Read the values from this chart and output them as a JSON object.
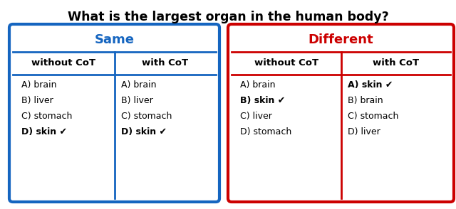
{
  "title": "What is the largest organ in the human body?",
  "title_fontsize": 12.5,
  "title_fontweight": "bold",
  "blue_color": "#1565C0",
  "red_color": "#CC0000",
  "same_label": "Same",
  "different_label": "Different",
  "col_headers": [
    "without CoT",
    "with CoT",
    "without CoT",
    "with CoT"
  ],
  "same_col1": [
    "A) brain",
    "B) liver",
    "C) stomach",
    "D) skin ✔"
  ],
  "same_col2": [
    "A) brain",
    "B) liver",
    "C) stomach",
    "D) skin ✔"
  ],
  "diff_col1": [
    "A) brain",
    "B) skin ✔",
    "C) liver",
    "D) stomach"
  ],
  "diff_col2": [
    "A) skin ✔",
    "B) brain",
    "C) stomach",
    "D) liver"
  ],
  "same_col1_bold": [
    false,
    false,
    false,
    true
  ],
  "same_col2_bold": [
    false,
    false,
    false,
    true
  ],
  "diff_col1_bold": [
    false,
    true,
    false,
    false
  ],
  "diff_col2_bold": [
    true,
    false,
    false,
    false
  ],
  "text_fontsize": 9,
  "header_fontsize": 9.5,
  "group_label_fontsize": 13
}
